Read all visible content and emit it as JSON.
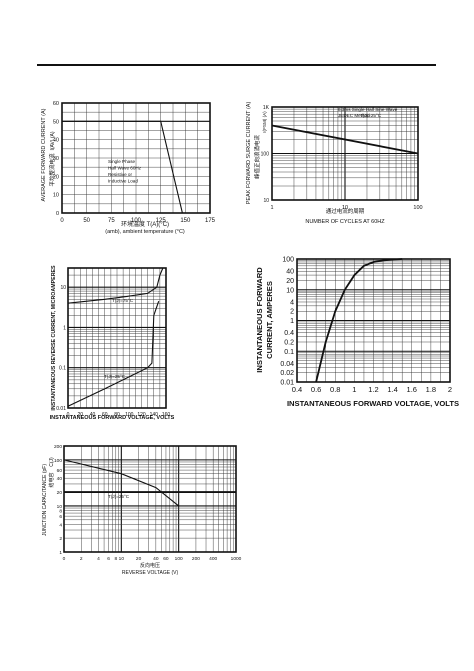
{
  "chart_data": [
    {
      "type": "line",
      "ylabel": "AVERAGE FORWARD CURRENT (A)",
      "ylabel_cn": "平均整流电流",
      "ylabel_symbol": "I(AV) (A)",
      "xlabel_cn": "环境温度 T(A)(°C)",
      "xlabel": "(amb), ambient temperature (°C)",
      "x_ticks": [
        "0",
        "50",
        "75",
        "100",
        "125",
        "150",
        "175"
      ],
      "y_ticks": [
        "0",
        "10",
        "20",
        "30",
        "40",
        "50",
        "60"
      ],
      "xlim": [
        25,
        175
      ],
      "ylim": [
        0,
        60
      ],
      "annotation": [
        "Single Phase",
        "Half Wave 60Hz",
        "Resistive or",
        "Inductive Load"
      ],
      "series": [
        {
          "x": [
            25,
            125,
            147
          ],
          "y": [
            50,
            50,
            0
          ]
        }
      ]
    },
    {
      "type": "line",
      "scale": "log-log",
      "ylabel": "PEAK FORWARD SURGE CURRENT (A)",
      "ylabel_cn": "峰值正向浪涌电流",
      "ylabel_symbol": "I(FSM) (A)",
      "xlabel_cn": "通过电流的周期",
      "xlabel": "NUMBER OF CYCLES AT 60HZ",
      "x_ticks": [
        "1",
        "10",
        "100"
      ],
      "y_ticks": [
        "10",
        "100",
        "1K"
      ],
      "xlim": [
        1,
        100
      ],
      "ylim": [
        10,
        1000
      ],
      "legend": [
        "8.3ms Single Half Sine Wave",
        "JEDEC Method",
        "T(J)=25°C"
      ],
      "series": [
        {
          "x": [
            1,
            100
          ],
          "y": [
            400,
            100
          ]
        }
      ]
    },
    {
      "type": "line",
      "scale": "semi-log-y",
      "ylabel": "INSTANTANEOUS REVERSE CURRENT, MICROAMPERES",
      "xlabel": "INSTANTANEOUS FORWARD VOLTAGE, VOLTS",
      "x_ticks": [
        "0",
        "20",
        "40",
        "60",
        "80",
        "100",
        "120",
        "140",
        "160"
      ],
      "y_ticks": [
        "0.01",
        "0.1",
        "1",
        "10"
      ],
      "xlim": [
        0,
        160
      ],
      "ylim": [
        0.01,
        30
      ],
      "series": [
        {
          "name": "T(J)=75°C",
          "x": [
            0,
            60,
            100,
            130,
            145,
            150,
            155
          ],
          "y": [
            4,
            5,
            6,
            7,
            10,
            20,
            30
          ]
        },
        {
          "name": "T(J)=25°C",
          "x": [
            0,
            60,
            100,
            130,
            137,
            138,
            140,
            148
          ],
          "y": [
            0.011,
            0.03,
            0.06,
            0.1,
            0.13,
            0.3,
            2,
            4.5
          ]
        }
      ]
    },
    {
      "type": "line",
      "scale": "semi-log-y",
      "ylabel": "INSTANTANEOUS FORWARD CURRENT, AMPERES",
      "xlabel": "INSTANTANEOUS FORWARD VOLTAGE, VOLTS",
      "x_ticks": [
        "0.4",
        "0.6",
        "0.8",
        "1",
        "1.2",
        "1.4",
        "1.6",
        "1.8",
        "2"
      ],
      "y_ticks": [
        "0.01",
        "0.02",
        "0.04",
        "0.1",
        "0.2",
        "0.4",
        "1",
        "2",
        "4",
        "10",
        "20",
        "40",
        "100"
      ],
      "xlim": [
        0.4,
        2
      ],
      "ylim": [
        0.01,
        100
      ],
      "series": [
        {
          "x": [
            0.6,
            0.7,
            0.8,
            0.9,
            1.0,
            1.1,
            1.2,
            1.3,
            1.5
          ],
          "y": [
            0.01,
            0.2,
            2,
            10,
            30,
            60,
            80,
            90,
            100
          ]
        }
      ]
    },
    {
      "type": "line",
      "scale": "log-log",
      "ylabel": "JUNCTION CAPACITANCE (pF)",
      "ylabel_cn": "结电容",
      "ylabel_symbol": "C(J)",
      "xlabel_cn": "反向电压",
      "xlabel": "REVERSE VOLTAGE (V)",
      "x_ticks": [
        "0",
        "2",
        "4",
        "6",
        "8",
        "10",
        "20",
        "40",
        "60",
        "100",
        "200",
        "400",
        "1000"
      ],
      "y_ticks": [
        "1",
        "2",
        "4",
        "6",
        "8",
        "10",
        "20",
        "40",
        "60",
        "100",
        "200"
      ],
      "xlim": [
        1,
        1000
      ],
      "ylim": [
        1,
        200
      ],
      "series": [
        {
          "name": "T(J)=25°C",
          "x": [
            1,
            10,
            40,
            100
          ],
          "y": [
            100,
            50,
            25,
            10
          ]
        }
      ]
    }
  ]
}
